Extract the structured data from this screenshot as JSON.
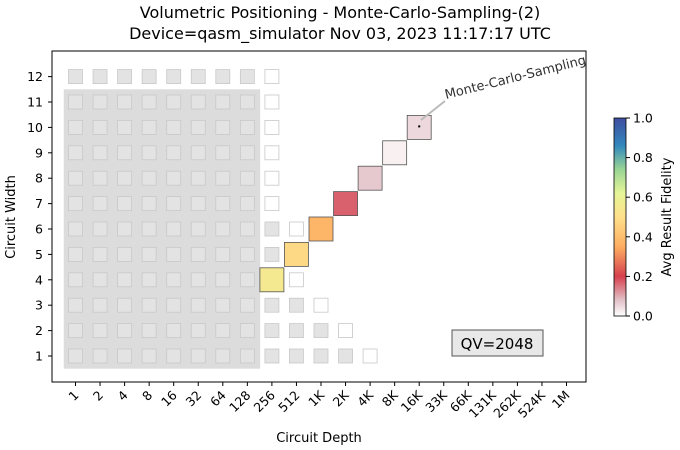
{
  "chart_data": {
    "type": "heatmap",
    "title_line1": "Volumetric Positioning - Monte-Carlo-Sampling-(2)",
    "title_line2": "Device=qasm_simulator  Nov 03, 2023 11:17:17 UTC",
    "xlabel": "Circuit Depth",
    "ylabel": "Circuit Width",
    "x_ticks": [
      "1",
      "2",
      "4",
      "8",
      "16",
      "32",
      "64",
      "128",
      "256",
      "512",
      "1K",
      "2K",
      "4K",
      "8K",
      "16K",
      "33K",
      "66K",
      "131K",
      "262K",
      "524K",
      "1M"
    ],
    "y_ticks": [
      "1",
      "2",
      "3",
      "4",
      "5",
      "6",
      "7",
      "8",
      "9",
      "10",
      "11",
      "12"
    ],
    "qv_label": "QV=2048",
    "annotation": "Monte-Carlo-Sampling",
    "colorbar": {
      "label": "Avg Result Fidelity",
      "ticks": [
        "0.0",
        "0.2",
        "0.4",
        "0.6",
        "0.8",
        "1.0"
      ],
      "range": [
        0,
        1
      ]
    },
    "quantum_volume_region": {
      "depth_max_index": 7,
      "width_max": 11
    },
    "background_cells": [
      {
        "width": 12,
        "depth_count": 9
      },
      {
        "width": 11,
        "depth_count": 9
      },
      {
        "width": 10,
        "depth_count": 9
      },
      {
        "width": 9,
        "depth_count": 9
      },
      {
        "width": 8,
        "depth_count": 9
      },
      {
        "width": 7,
        "depth_count": 9
      },
      {
        "width": 6,
        "depth_count": 10
      },
      {
        "width": 5,
        "depth_count": 10
      },
      {
        "width": 4,
        "depth_count": 10
      },
      {
        "width": 3,
        "depth_count": 11
      },
      {
        "width": 2,
        "depth_count": 12
      },
      {
        "width": 1,
        "depth_count": 13
      }
    ],
    "result_cells": [
      {
        "width": 4,
        "depth": "256",
        "fidelity": 0.55
      },
      {
        "width": 5,
        "depth": "512",
        "fidelity": 0.48
      },
      {
        "width": 6,
        "depth": "1K",
        "fidelity": 0.37
      },
      {
        "width": 7,
        "depth": "2K",
        "fidelity": 0.17
      },
      {
        "width": 8,
        "depth": "4K",
        "fidelity": 0.07
      },
      {
        "width": 9,
        "depth": "8K",
        "fidelity": 0.02
      },
      {
        "width": 10,
        "depth": "16K",
        "fidelity": 0.05
      }
    ]
  }
}
